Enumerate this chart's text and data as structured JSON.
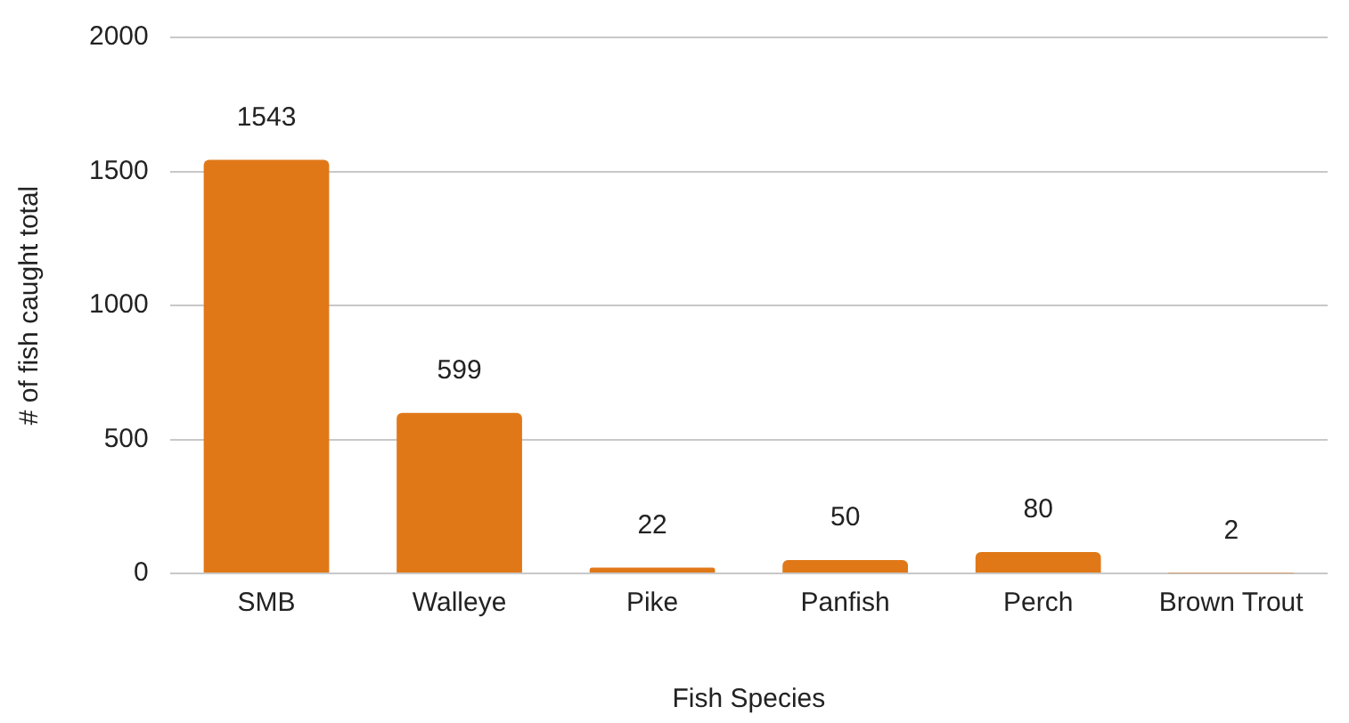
{
  "chart_data": {
    "type": "bar",
    "xlabel": "Fish Species",
    "ylabel": "# of fish caught total",
    "categories": [
      "SMB",
      "Walleye",
      "Pike",
      "Panfish",
      "Perch",
      "Brown Trout"
    ],
    "values": [
      1543,
      599,
      22,
      50,
      80,
      2
    ],
    "color": "#e07818",
    "ylim": [
      0,
      2000
    ],
    "yticks": [
      0,
      500,
      1000,
      1500,
      2000
    ],
    "grid": "y",
    "data_labels": true,
    "legend": false
  }
}
